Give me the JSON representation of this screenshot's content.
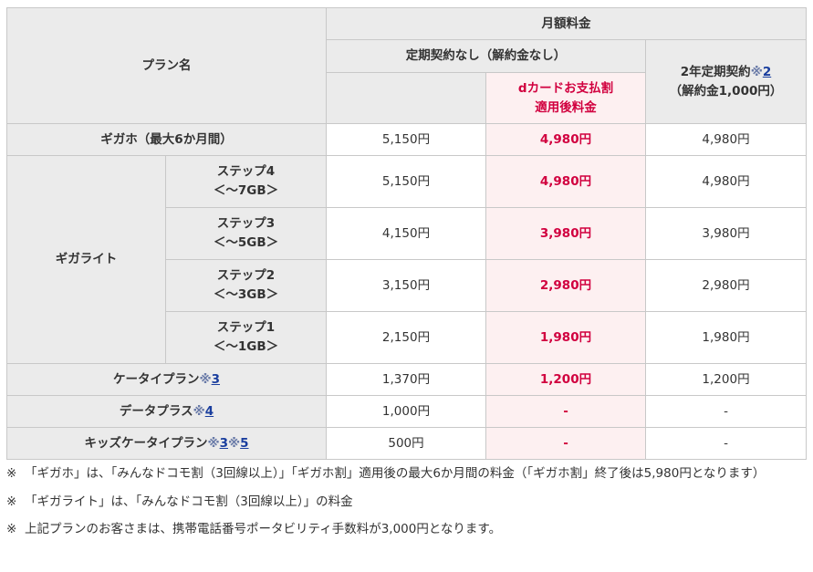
{
  "table": {
    "plan_header": "プラン名",
    "monthly_header": "月額料金",
    "no_contract_header": "定期契約なし（解約金なし）",
    "dcard_header_line1": "dカードお支払割",
    "dcard_header_line2": "適用後料金",
    "two_year_header_text": "2年定期契約",
    "two_year_header_mark": "※",
    "two_year_header_ref": "2",
    "two_year_header_sub": "（解約金1,000円）",
    "rows": [
      {
        "name": "ギガホ（最大6か月間）",
        "price": "5,150円",
        "dcard": "4,980円",
        "two_year": "4,980円"
      },
      {
        "group": "ギガライト",
        "step": "ステップ4",
        "cap": "＜～7GB＞",
        "price": "5,150円",
        "dcard": "4,980円",
        "two_year": "4,980円"
      },
      {
        "step": "ステップ3",
        "cap": "＜～5GB＞",
        "price": "4,150円",
        "dcard": "3,980円",
        "two_year": "3,980円"
      },
      {
        "step": "ステップ2",
        "cap": "＜～3GB＞",
        "price": "3,150円",
        "dcard": "2,980円",
        "two_year": "2,980円"
      },
      {
        "step": "ステップ1",
        "cap": "＜～1GB＞",
        "price": "2,150円",
        "dcard": "1,980円",
        "two_year": "1,980円"
      },
      {
        "name": "ケータイプラン",
        "mark": "※",
        "ref": "3",
        "price": "1,370円",
        "dcard": "1,200円",
        "two_year": "1,200円"
      },
      {
        "name": "データプラス",
        "mark": "※",
        "ref": "4",
        "price": "1,000円",
        "dcard": "-",
        "two_year": "-"
      },
      {
        "name": "キッズケータイプラン",
        "mark": "※",
        "ref": "3",
        "mark2": "※",
        "ref2": "5",
        "price": "500円",
        "dcard": "-",
        "two_year": "-"
      }
    ]
  },
  "notes": [
    {
      "mark": "※",
      "text": "「ギガホ」は、「みんなドコモ割（3回線以上）」「ギガホ割」適用後の最大6か月間の料金（「ギガホ割」終了後は5,980円となります）"
    },
    {
      "mark": "※",
      "text": "「ギガライト」は、「みんなドコモ割（3回線以上）」の料金"
    },
    {
      "mark": "※",
      "text": "上記プランのお客さまは、携帯電話番号ポータビリティ手数料が3,000円となります。"
    }
  ],
  "colors": {
    "header_bg": "#ebebeb",
    "highlight_bg": "#fdf0f1",
    "highlight_text": "#d1003f",
    "link": "#1a3e9e"
  }
}
